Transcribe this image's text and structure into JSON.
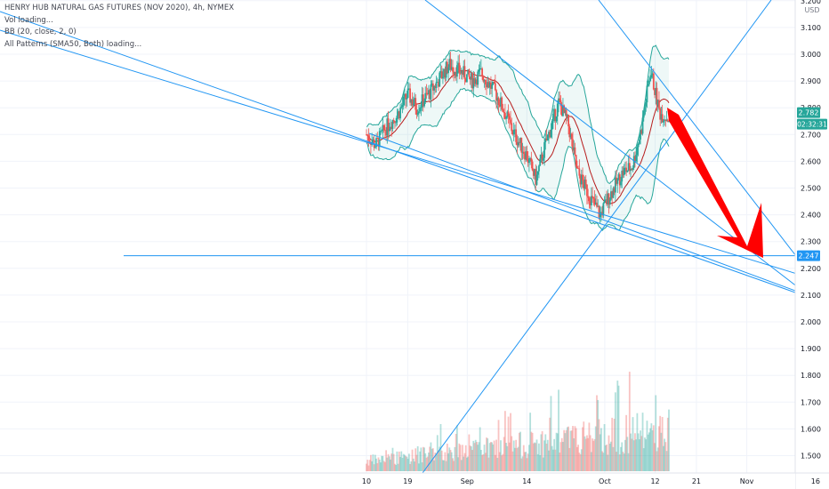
{
  "legend": {
    "symbol": "HENRY HUB NATURAL GAS FUTURES (NOV 2020), 4h, NYMEX",
    "vol": "Vol loading...",
    "bb": "BB (20, close, 2, 0)",
    "patterns": "All Patterns (SMA50, Both) loading..."
  },
  "price_axis": {
    "currency": "USD",
    "ticks": [
      "3.200",
      "3.100",
      "3.000",
      "2.900",
      "2.800",
      "2.700",
      "2.600",
      "2.500",
      "2.400",
      "2.300",
      "2.200",
      "2.100",
      "2.000",
      "1.900",
      "1.800",
      "1.700",
      "1.600",
      "1.500"
    ]
  },
  "badges": {
    "last_price": "2.782",
    "countdown": "02:32:31",
    "hline_price": "2.247"
  },
  "colors": {
    "up": "#26a69a",
    "down": "#ef5350",
    "trendline": "#2196f3",
    "bb_band": "#26a69a",
    "bb_basis": "#b71c1c",
    "arrow": "#ff0000"
  },
  "chart_data": {
    "type": "candlestick",
    "timeframe": "4h",
    "x_tick_labels": [
      "10",
      "19",
      "Sep",
      "14",
      "Oct",
      "12",
      "21",
      "Nov",
      "16"
    ],
    "y_range": [
      1.45,
      3.22
    ],
    "last_price": 2.782,
    "horizontal_line": 2.247,
    "close_path": [
      [
        "Aug 10",
        2.7
      ],
      [
        "Aug 12",
        2.66
      ],
      [
        "Aug 14",
        2.72
      ],
      [
        "Aug 17",
        2.78
      ],
      [
        "Aug 19",
        2.85
      ],
      [
        "Aug 21",
        2.8
      ],
      [
        "Aug 24",
        2.86
      ],
      [
        "Aug 26",
        2.91
      ],
      [
        "Aug 28",
        2.96
      ],
      [
        "Aug 31",
        2.93
      ],
      [
        "Sep 2",
        2.9
      ],
      [
        "Sep 4",
        2.93
      ],
      [
        "Sep 7",
        2.86
      ],
      [
        "Sep 9",
        2.79
      ],
      [
        "Sep 11",
        2.71
      ],
      [
        "Sep 14",
        2.62
      ],
      [
        "Sep 16",
        2.53
      ],
      [
        "Sep 18",
        2.66
      ],
      [
        "Sep 21",
        2.82
      ],
      [
        "Sep 23",
        2.74
      ],
      [
        "Sep 25",
        2.56
      ],
      [
        "Sep 28",
        2.46
      ],
      [
        "Sep 30",
        2.4
      ],
      [
        "Oct 2",
        2.47
      ],
      [
        "Oct 5",
        2.56
      ],
      [
        "Oct 7",
        2.58
      ],
      [
        "Oct 9",
        2.72
      ],
      [
        "Oct 11",
        2.94
      ],
      [
        "Oct 13",
        2.78
      ],
      [
        "Oct 15",
        2.76
      ]
    ],
    "volume_max_approx": 9000
  }
}
